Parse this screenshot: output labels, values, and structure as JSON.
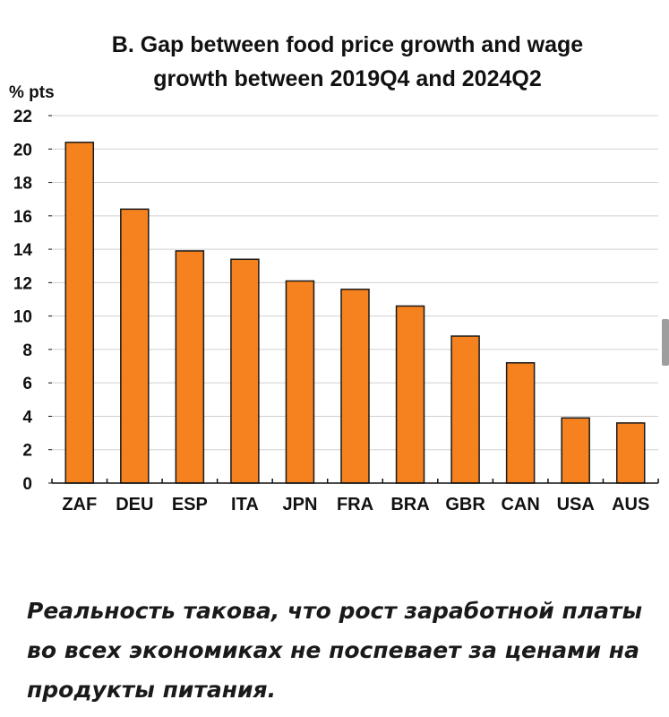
{
  "chart_data": {
    "type": "bar",
    "title": [
      "B. Gap between food price growth and wage",
      "growth between 2019Q4 and 2024Q2"
    ],
    "ylabel": "% pts",
    "xlabel": "",
    "categories": [
      "ZAF",
      "DEU",
      "ESP",
      "ITA",
      "JPN",
      "FRA",
      "BRA",
      "GBR",
      "CAN",
      "USA",
      "AUS"
    ],
    "values": [
      20.4,
      16.4,
      13.9,
      13.4,
      12.1,
      11.6,
      10.6,
      8.8,
      7.2,
      3.9,
      3.6
    ],
    "ylim": [
      0,
      22
    ],
    "yticks": [
      0,
      2,
      4,
      6,
      8,
      10,
      12,
      14,
      16,
      18,
      20,
      22
    ],
    "grid": true,
    "bar_color": "#f5821f",
    "bar_edge_color": "#1a1a1a",
    "grid_color": "#d0d0d0"
  },
  "caption": {
    "text": "Реальность такова, что рост заработной платы во всех экономиках не поспевает за ценами на продукты питания."
  }
}
